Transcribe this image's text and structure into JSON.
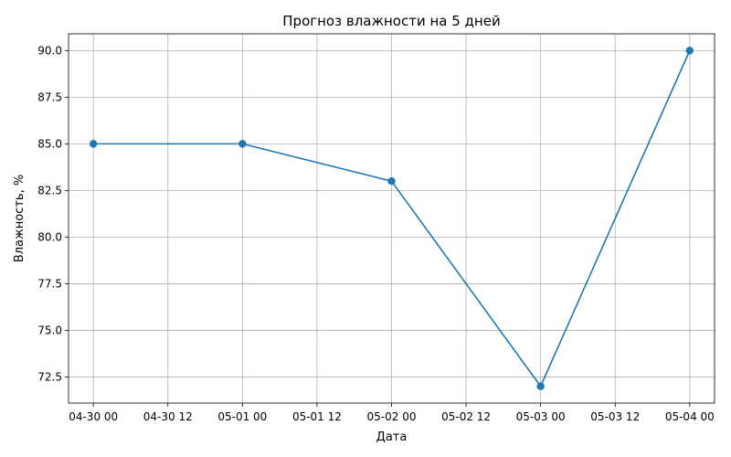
{
  "chart_data": {
    "type": "line",
    "title": "Прогноз влажности на 5 дней",
    "xlabel": "Дата",
    "ylabel": "Влажность, %",
    "x": [
      "2025-04-30 00:00",
      "2025-05-01 00:00",
      "2025-05-02 00:00",
      "2025-05-03 00:00",
      "2025-05-04 00:00"
    ],
    "series": [
      {
        "values": [
          85,
          85,
          83,
          72,
          90
        ],
        "color": "#1f77b4",
        "marker": "circle"
      }
    ],
    "xlim": [
      "2025-04-29 20:00",
      "2025-05-04 04:00"
    ],
    "ylim": [
      71.1,
      90.9
    ],
    "xticks": [
      "2025-04-30 00:00",
      "2025-04-30 12:00",
      "2025-05-01 00:00",
      "2025-05-01 12:00",
      "2025-05-02 00:00",
      "2025-05-02 12:00",
      "2025-05-03 00:00",
      "2025-05-03 12:00",
      "2025-05-04 00:00"
    ],
    "xtick_labels": [
      "04-30 00",
      "04-30 12",
      "05-01 00",
      "05-01 12",
      "05-02 00",
      "05-02 12",
      "05-03 00",
      "05-03 12",
      "05-04 00"
    ],
    "yticks": [
      72.5,
      75.0,
      77.5,
      80.0,
      82.5,
      85.0,
      87.5,
      90.0
    ],
    "ytick_labels": [
      "72.5",
      "75.0",
      "77.5",
      "80.0",
      "82.5",
      "85.0",
      "87.5",
      "90.0"
    ],
    "grid": true,
    "legend": "none"
  }
}
